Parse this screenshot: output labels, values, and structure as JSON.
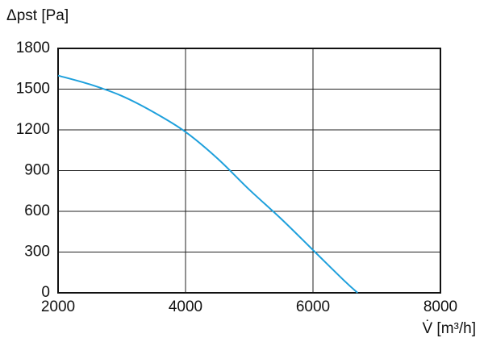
{
  "chart_data": {
    "type": "line",
    "y_label": "Δpst [Pa]",
    "x_label": "V̇ [m³/h]",
    "x": [
      2000,
      2500,
      3000,
      3500,
      4000,
      4500,
      5000,
      5500,
      6000,
      6500,
      6700
    ],
    "values": [
      1600,
      1535,
      1450,
      1330,
      1185,
      990,
      760,
      545,
      315,
      85,
      0
    ],
    "color": "#1ea0dc",
    "xlim": [
      2000,
      8000
    ],
    "xticks": [
      2000,
      4000,
      6000,
      8000
    ],
    "ylim": [
      0,
      1800
    ],
    "yticks": [
      0,
      300,
      600,
      900,
      1200,
      1500,
      1800
    ],
    "grid": true
  }
}
